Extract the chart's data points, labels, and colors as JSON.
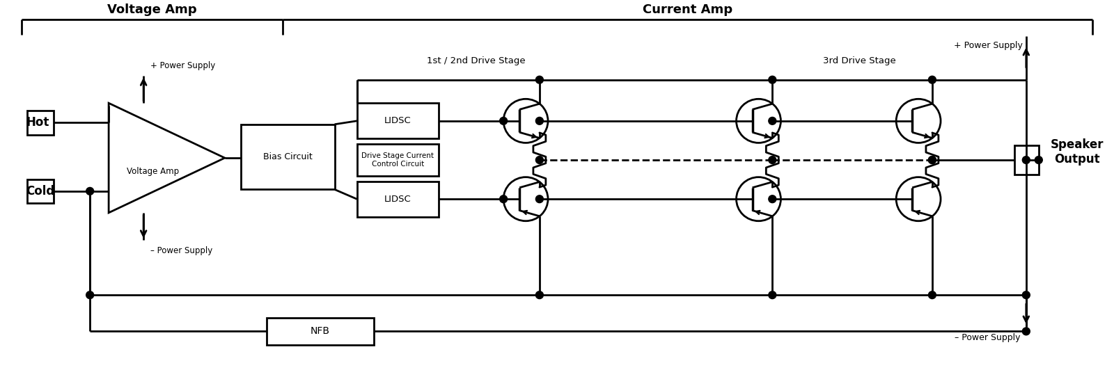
{
  "bg_color": "#ffffff",
  "lc": "#000000",
  "lw": 2.0,
  "lw_thick": 2.5,
  "voltage_amp_section": "Voltage Amp",
  "current_amp_section": "Current Amp",
  "hot_label": "Hot",
  "cold_label": "Cold",
  "voltage_amp_tri_label": "Voltage Amp",
  "bias_label": "Bias Circuit",
  "lidsc_label": "LIDSC",
  "dsc_label": "Drive Stage Current\nControl Circuit",
  "nfb_label": "NFB",
  "stage12_label": "1st / 2nd Drive Stage",
  "stage3_label": "3rd Drive Stage",
  "plus_ps_tri": "+ Power Supply",
  "minus_ps_tri": "– Power Supply",
  "plus_ps_right": "+ Power Supply",
  "minus_ps_right": "– Power Supply",
  "speaker_label": "Speaker\nOutput",
  "xlim": [
    0,
    16
  ],
  "ylim": [
    0,
    5.32
  ],
  "figw": 16.0,
  "figh": 5.32,
  "dpi": 100
}
